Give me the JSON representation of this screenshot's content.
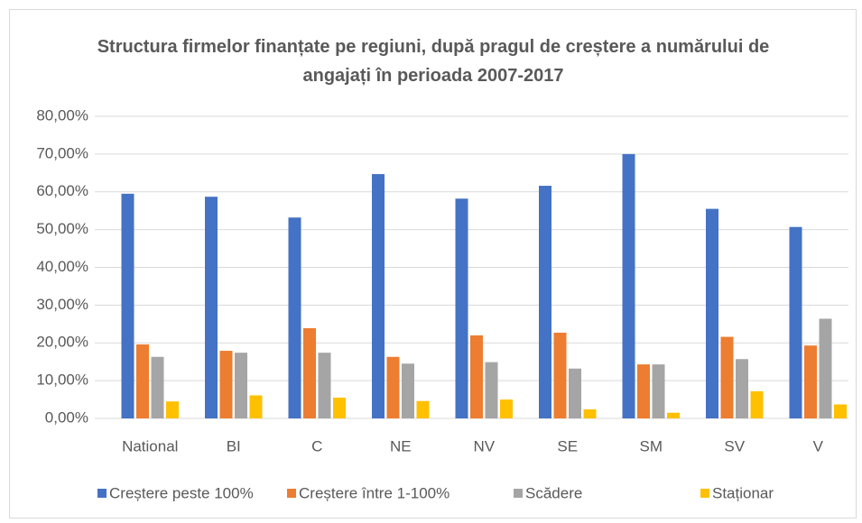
{
  "chart_data": {
    "type": "bar",
    "title": "Structura firmelor finanțate pe regiuni, după pragul de creștere a numărului de angajați în perioada 2007-2017",
    "categories": [
      "National",
      "BI",
      "C",
      "NE",
      "NV",
      "SE",
      "SM",
      "SV",
      "V"
    ],
    "series": [
      {
        "name": "Creștere peste 100%",
        "color": "#4472c4",
        "values": [
          59.5,
          58.7,
          53.2,
          64.7,
          58.2,
          61.6,
          70.0,
          55.5,
          50.7
        ]
      },
      {
        "name": "Creștere între 1-100%",
        "color": "#ed7d31",
        "values": [
          19.6,
          17.9,
          23.9,
          16.3,
          22.0,
          22.7,
          14.3,
          21.6,
          19.3
        ]
      },
      {
        "name": "Scădere",
        "color": "#a5a5a5",
        "values": [
          16.3,
          17.4,
          17.4,
          14.5,
          14.9,
          13.2,
          14.3,
          15.7,
          26.4
        ]
      },
      {
        "name": "Staționar",
        "color": "#ffc000",
        "values": [
          4.5,
          6.1,
          5.5,
          4.6,
          5.0,
          2.4,
          1.5,
          7.2,
          3.7
        ]
      }
    ],
    "ylim": [
      0,
      80
    ],
    "yticks": [
      {
        "value": 0,
        "label": "0,00%"
      },
      {
        "value": 10,
        "label": "10,00%"
      },
      {
        "value": 20,
        "label": "20,00%"
      },
      {
        "value": 30,
        "label": "30,00%"
      },
      {
        "value": 40,
        "label": "40,00%"
      },
      {
        "value": 50,
        "label": "50,00%"
      },
      {
        "value": 60,
        "label": "60,00%"
      },
      {
        "value": 70,
        "label": "70,00%"
      },
      {
        "value": 80,
        "label": "80,00%"
      }
    ],
    "grid": true,
    "legend": "bottom"
  }
}
